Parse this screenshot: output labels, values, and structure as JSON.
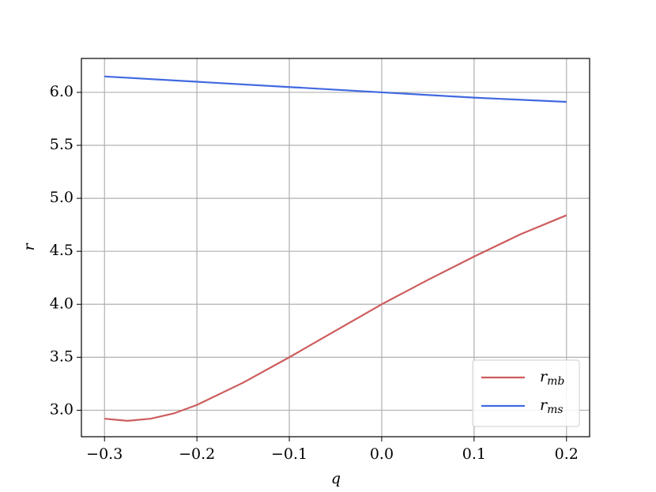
{
  "chart_data": {
    "type": "line",
    "x_label": "q",
    "y_label": "r",
    "series": [
      {
        "name": "r_mb",
        "color": "#cd5c5c",
        "x": [
          -0.3,
          -0.275,
          -0.25,
          -0.225,
          -0.2,
          -0.15,
          -0.1,
          -0.05,
          0.0,
          0.05,
          0.1,
          0.15,
          0.2
        ],
        "values": [
          2.92,
          2.9,
          2.92,
          2.97,
          3.05,
          3.26,
          3.5,
          3.75,
          4.0,
          4.23,
          4.45,
          4.66,
          4.84
        ]
      },
      {
        "name": "r_ms",
        "color": "#4169e1",
        "x": [
          -0.3,
          -0.2,
          -0.1,
          0.0,
          0.1,
          0.2
        ],
        "values": [
          6.15,
          6.1,
          6.05,
          6.0,
          5.95,
          5.91
        ]
      }
    ],
    "xlim": [
      -0.325,
      0.225
    ],
    "xticks": [
      {
        "value": -0.3,
        "label": "−0.3"
      },
      {
        "value": -0.2,
        "label": "−0.2"
      },
      {
        "value": -0.1,
        "label": "−0.1"
      },
      {
        "value": 0,
        "label": "0.0"
      },
      0.1,
      0.2
    ],
    "ylim": [
      2.75,
      6.32
    ],
    "yticks": [
      {
        "value": 3,
        "label": "3.0"
      },
      3.5,
      {
        "value": 4,
        "label": "4.0"
      },
      4.5,
      {
        "value": 5,
        "label": "5.0"
      },
      5.5,
      {
        "value": 6,
        "label": "6.0"
      }
    ],
    "grid": true,
    "legend": "lower right"
  }
}
